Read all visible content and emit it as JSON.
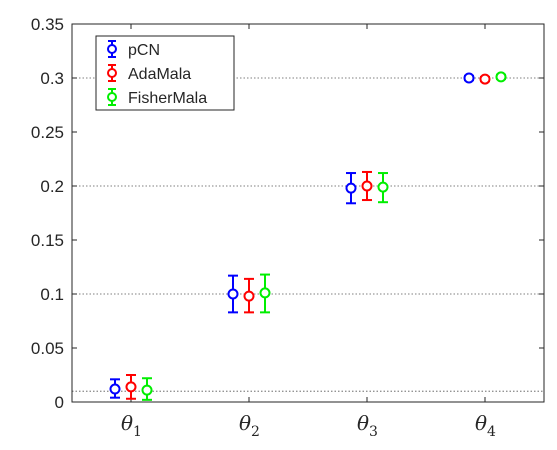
{
  "chart_data": {
    "type": "scatter",
    "subtype": "errorbar",
    "categories": [
      "θ1",
      "θ2",
      "θ3",
      "θ4"
    ],
    "xtick_labels": [
      {
        "base": "θ",
        "sub": "1"
      },
      {
        "base": "θ",
        "sub": "2"
      },
      {
        "base": "θ",
        "sub": "3"
      },
      {
        "base": "θ",
        "sub": "4"
      }
    ],
    "ylim": [
      0,
      0.35
    ],
    "yticks": [
      0,
      0.05,
      0.1,
      0.15,
      0.2,
      0.25,
      0.3,
      0.35
    ],
    "ytick_labels": [
      "0",
      "0.05",
      "0.1",
      "0.15",
      "0.2",
      "0.25",
      "0.3",
      "0.35"
    ],
    "reference_lines": [
      0.01,
      0.1,
      0.2,
      0.3
    ],
    "legend_position": "top-left",
    "series": [
      {
        "name": "pCN",
        "color": "#0000ff",
        "values": [
          0.012,
          0.1,
          0.198,
          0.3
        ],
        "lower": [
          0.004,
          0.083,
          0.184,
          0.298
        ],
        "upper": [
          0.021,
          0.117,
          0.212,
          0.302
        ]
      },
      {
        "name": "AdaMala",
        "color": "#ff0000",
        "values": [
          0.014,
          0.098,
          0.2,
          0.299
        ],
        "lower": [
          0.003,
          0.083,
          0.187,
          0.297
        ],
        "upper": [
          0.025,
          0.114,
          0.213,
          0.301
        ]
      },
      {
        "name": "FisherMala",
        "color": "#00ee00",
        "values": [
          0.011,
          0.101,
          0.199,
          0.301
        ],
        "lower": [
          0.002,
          0.083,
          0.185,
          0.299
        ],
        "upper": [
          0.022,
          0.118,
          0.212,
          0.303
        ]
      }
    ]
  }
}
